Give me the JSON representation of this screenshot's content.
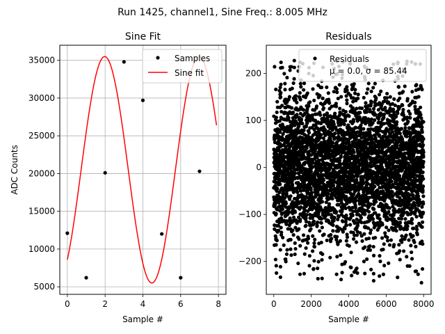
{
  "suptitle": "Run 1425, channel1, Sine Freq.: 8.005 MHz",
  "chart_data": [
    {
      "type": "line",
      "title": "Sine Fit",
      "xlabel": "Sample #",
      "ylabel": "ADC Counts",
      "xlim": [
        -0.4,
        8.4
      ],
      "ylim": [
        4000,
        37000
      ],
      "xticks": [
        0,
        2,
        4,
        6,
        8
      ],
      "yticks": [
        5000,
        10000,
        15000,
        20000,
        25000,
        30000,
        35000
      ],
      "grid": true,
      "legend": {
        "placement": "upper-right",
        "entries": [
          "Samples",
          "Sine fit"
        ]
      },
      "series": [
        {
          "name": "Samples",
          "kind": "scatter",
          "color": "#000000",
          "x": [
            0,
            1,
            2,
            3,
            4,
            5,
            6,
            7
          ],
          "y": [
            12100,
            6200,
            20100,
            34800,
            29700,
            12000,
            6200,
            20300
          ]
        },
        {
          "name": "Sine fit",
          "kind": "line",
          "color": "#ff0000",
          "amplitude": 15000,
          "offset": 20500,
          "period_samples": 4.995,
          "phase_deg": -52.5,
          "x_range": [
            0,
            7.9
          ]
        }
      ]
    },
    {
      "type": "scatter",
      "title": "Residuals",
      "xlabel": "Sample #",
      "ylabel": "",
      "xlim": [
        -400,
        8400
      ],
      "ylim": [
        -270,
        260
      ],
      "xticks": [
        0,
        2000,
        4000,
        6000,
        8000
      ],
      "yticks": [
        -200,
        -100,
        0,
        100,
        200
      ],
      "grid": false,
      "legend": {
        "placement": "upper-right",
        "entries": [
          "Residuals",
          "μ = 0.0, σ = 85.44"
        ]
      },
      "series": [
        {
          "name": "Residuals",
          "color": "#000000",
          "n_points": 8000,
          "mean": 0.0,
          "std": 85.44,
          "period_samples": 500,
          "x_range": [
            0,
            7999
          ],
          "min": -246,
          "max": 228
        }
      ]
    }
  ],
  "tick_labels": {
    "left_x": [
      "0",
      "2",
      "4",
      "6",
      "8"
    ],
    "left_y": [
      "5000",
      "10000",
      "15000",
      "20000",
      "25000",
      "30000",
      "35000"
    ],
    "right_x": [
      "0",
      "2000",
      "4000",
      "6000",
      "8000"
    ],
    "right_y": [
      "−200",
      "−100",
      "0",
      "100",
      "200"
    ]
  }
}
